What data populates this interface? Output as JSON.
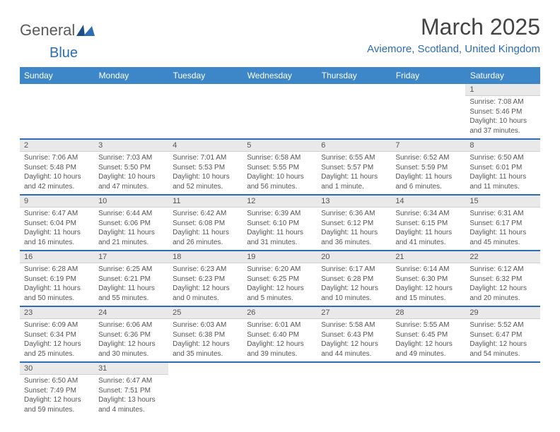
{
  "brand": {
    "part1": "General",
    "part2": "Blue"
  },
  "title": "March 2025",
  "location": "Aviemore, Scotland, United Kingdom",
  "colors": {
    "header_bg": "#3d87c9",
    "header_text": "#ffffff",
    "accent": "#2d6db3",
    "daynum_bg": "#e9e9e9",
    "text": "#555555",
    "background": "#ffffff"
  },
  "day_headers": [
    "Sunday",
    "Monday",
    "Tuesday",
    "Wednesday",
    "Thursday",
    "Friday",
    "Saturday"
  ],
  "weeks": [
    [
      null,
      null,
      null,
      null,
      null,
      null,
      {
        "n": "1",
        "sr": "Sunrise: 7:08 AM",
        "ss": "Sunset: 5:46 PM",
        "dl1": "Daylight: 10 hours",
        "dl2": "and 37 minutes."
      }
    ],
    [
      {
        "n": "2",
        "sr": "Sunrise: 7:06 AM",
        "ss": "Sunset: 5:48 PM",
        "dl1": "Daylight: 10 hours",
        "dl2": "and 42 minutes."
      },
      {
        "n": "3",
        "sr": "Sunrise: 7:03 AM",
        "ss": "Sunset: 5:50 PM",
        "dl1": "Daylight: 10 hours",
        "dl2": "and 47 minutes."
      },
      {
        "n": "4",
        "sr": "Sunrise: 7:01 AM",
        "ss": "Sunset: 5:53 PM",
        "dl1": "Daylight: 10 hours",
        "dl2": "and 52 minutes."
      },
      {
        "n": "5",
        "sr": "Sunrise: 6:58 AM",
        "ss": "Sunset: 5:55 PM",
        "dl1": "Daylight: 10 hours",
        "dl2": "and 56 minutes."
      },
      {
        "n": "6",
        "sr": "Sunrise: 6:55 AM",
        "ss": "Sunset: 5:57 PM",
        "dl1": "Daylight: 11 hours",
        "dl2": "and 1 minute."
      },
      {
        "n": "7",
        "sr": "Sunrise: 6:52 AM",
        "ss": "Sunset: 5:59 PM",
        "dl1": "Daylight: 11 hours",
        "dl2": "and 6 minutes."
      },
      {
        "n": "8",
        "sr": "Sunrise: 6:50 AM",
        "ss": "Sunset: 6:01 PM",
        "dl1": "Daylight: 11 hours",
        "dl2": "and 11 minutes."
      }
    ],
    [
      {
        "n": "9",
        "sr": "Sunrise: 6:47 AM",
        "ss": "Sunset: 6:04 PM",
        "dl1": "Daylight: 11 hours",
        "dl2": "and 16 minutes."
      },
      {
        "n": "10",
        "sr": "Sunrise: 6:44 AM",
        "ss": "Sunset: 6:06 PM",
        "dl1": "Daylight: 11 hours",
        "dl2": "and 21 minutes."
      },
      {
        "n": "11",
        "sr": "Sunrise: 6:42 AM",
        "ss": "Sunset: 6:08 PM",
        "dl1": "Daylight: 11 hours",
        "dl2": "and 26 minutes."
      },
      {
        "n": "12",
        "sr": "Sunrise: 6:39 AM",
        "ss": "Sunset: 6:10 PM",
        "dl1": "Daylight: 11 hours",
        "dl2": "and 31 minutes."
      },
      {
        "n": "13",
        "sr": "Sunrise: 6:36 AM",
        "ss": "Sunset: 6:12 PM",
        "dl1": "Daylight: 11 hours",
        "dl2": "and 36 minutes."
      },
      {
        "n": "14",
        "sr": "Sunrise: 6:34 AM",
        "ss": "Sunset: 6:15 PM",
        "dl1": "Daylight: 11 hours",
        "dl2": "and 41 minutes."
      },
      {
        "n": "15",
        "sr": "Sunrise: 6:31 AM",
        "ss": "Sunset: 6:17 PM",
        "dl1": "Daylight: 11 hours",
        "dl2": "and 45 minutes."
      }
    ],
    [
      {
        "n": "16",
        "sr": "Sunrise: 6:28 AM",
        "ss": "Sunset: 6:19 PM",
        "dl1": "Daylight: 11 hours",
        "dl2": "and 50 minutes."
      },
      {
        "n": "17",
        "sr": "Sunrise: 6:25 AM",
        "ss": "Sunset: 6:21 PM",
        "dl1": "Daylight: 11 hours",
        "dl2": "and 55 minutes."
      },
      {
        "n": "18",
        "sr": "Sunrise: 6:23 AM",
        "ss": "Sunset: 6:23 PM",
        "dl1": "Daylight: 12 hours",
        "dl2": "and 0 minutes."
      },
      {
        "n": "19",
        "sr": "Sunrise: 6:20 AM",
        "ss": "Sunset: 6:25 PM",
        "dl1": "Daylight: 12 hours",
        "dl2": "and 5 minutes."
      },
      {
        "n": "20",
        "sr": "Sunrise: 6:17 AM",
        "ss": "Sunset: 6:28 PM",
        "dl1": "Daylight: 12 hours",
        "dl2": "and 10 minutes."
      },
      {
        "n": "21",
        "sr": "Sunrise: 6:14 AM",
        "ss": "Sunset: 6:30 PM",
        "dl1": "Daylight: 12 hours",
        "dl2": "and 15 minutes."
      },
      {
        "n": "22",
        "sr": "Sunrise: 6:12 AM",
        "ss": "Sunset: 6:32 PM",
        "dl1": "Daylight: 12 hours",
        "dl2": "and 20 minutes."
      }
    ],
    [
      {
        "n": "23",
        "sr": "Sunrise: 6:09 AM",
        "ss": "Sunset: 6:34 PM",
        "dl1": "Daylight: 12 hours",
        "dl2": "and 25 minutes."
      },
      {
        "n": "24",
        "sr": "Sunrise: 6:06 AM",
        "ss": "Sunset: 6:36 PM",
        "dl1": "Daylight: 12 hours",
        "dl2": "and 30 minutes."
      },
      {
        "n": "25",
        "sr": "Sunrise: 6:03 AM",
        "ss": "Sunset: 6:38 PM",
        "dl1": "Daylight: 12 hours",
        "dl2": "and 35 minutes."
      },
      {
        "n": "26",
        "sr": "Sunrise: 6:01 AM",
        "ss": "Sunset: 6:40 PM",
        "dl1": "Daylight: 12 hours",
        "dl2": "and 39 minutes."
      },
      {
        "n": "27",
        "sr": "Sunrise: 5:58 AM",
        "ss": "Sunset: 6:43 PM",
        "dl1": "Daylight: 12 hours",
        "dl2": "and 44 minutes."
      },
      {
        "n": "28",
        "sr": "Sunrise: 5:55 AM",
        "ss": "Sunset: 6:45 PM",
        "dl1": "Daylight: 12 hours",
        "dl2": "and 49 minutes."
      },
      {
        "n": "29",
        "sr": "Sunrise: 5:52 AM",
        "ss": "Sunset: 6:47 PM",
        "dl1": "Daylight: 12 hours",
        "dl2": "and 54 minutes."
      }
    ],
    [
      {
        "n": "30",
        "sr": "Sunrise: 6:50 AM",
        "ss": "Sunset: 7:49 PM",
        "dl1": "Daylight: 12 hours",
        "dl2": "and 59 minutes."
      },
      {
        "n": "31",
        "sr": "Sunrise: 6:47 AM",
        "ss": "Sunset: 7:51 PM",
        "dl1": "Daylight: 13 hours",
        "dl2": "and 4 minutes."
      },
      null,
      null,
      null,
      null,
      null
    ]
  ]
}
